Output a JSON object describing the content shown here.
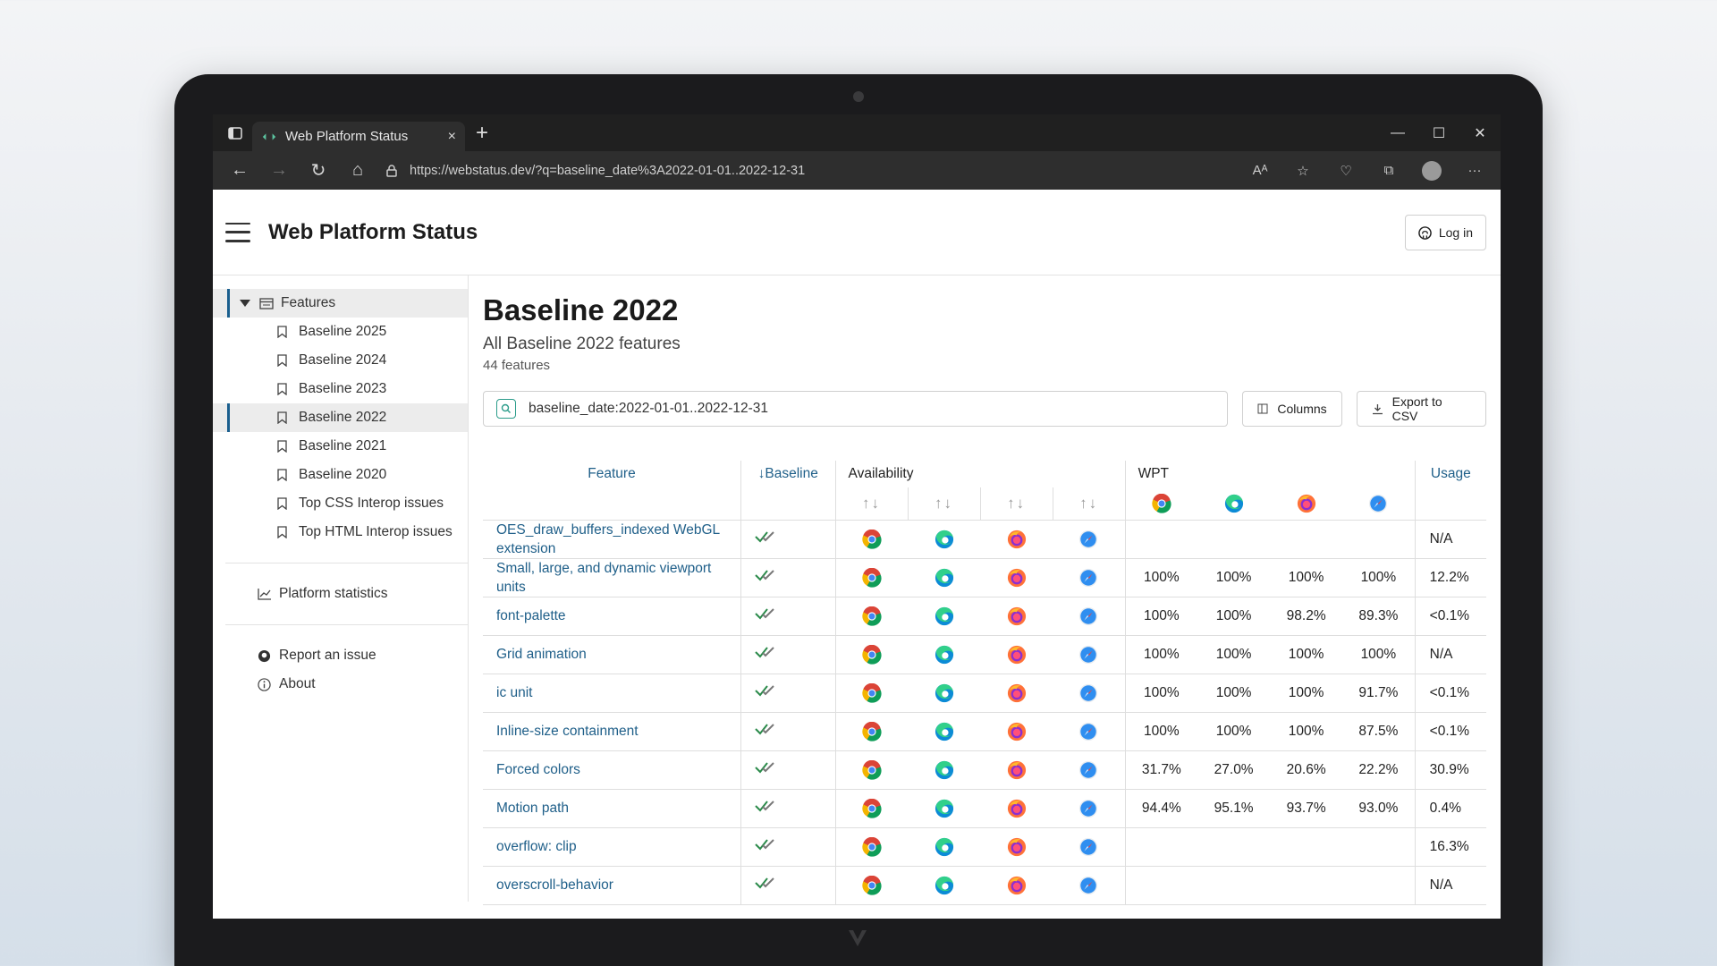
{
  "browser": {
    "tab_title": "Web Platform Status",
    "url": "https://webstatus.dev/?q=baseline_date%3A2022-01-01..2022-12-31",
    "new_tab": "+",
    "close_tab": "×",
    "minimize": "—",
    "maximize": "☐",
    "close_window": "✕",
    "back": "←",
    "forward": "→",
    "reload": "↻",
    "home": "⌂",
    "more": "···",
    "read_aloud": "Aᴬ"
  },
  "app": {
    "title": "Web Platform Status",
    "login_label": "Log in"
  },
  "sidebar": {
    "root_label": "Features",
    "items": [
      {
        "label": "Baseline 2025"
      },
      {
        "label": "Baseline 2024"
      },
      {
        "label": "Baseline 2023"
      },
      {
        "label": "Baseline 2022"
      },
      {
        "label": "Baseline 2021"
      },
      {
        "label": "Baseline 2020"
      },
      {
        "label": "Top CSS Interop issues"
      },
      {
        "label": "Top HTML Interop issues"
      }
    ],
    "stats_label": "Platform statistics",
    "report_label": "Report an issue",
    "about_label": "About"
  },
  "page": {
    "title": "Baseline 2022",
    "subtitle": "All Baseline 2022 features",
    "count": "44 features",
    "search_value": "baseline_date:2022-01-01..2022-12-31",
    "columns_label": "Columns",
    "export_label": "Export to CSV"
  },
  "table": {
    "headers": {
      "feature": "Feature",
      "baseline": "↓Baseline",
      "availability": "Availability",
      "wpt": "WPT",
      "usage": "Usage",
      "sort": "↑↓"
    },
    "rows": [
      {
        "feature": "OES_draw_buffers_indexed WebGL extension",
        "wpt": [
          "",
          "",
          "",
          ""
        ],
        "usage": "N/A"
      },
      {
        "feature": "Small, large, and dynamic viewport units",
        "wpt": [
          "100%",
          "100%",
          "100%",
          "100%"
        ],
        "usage": "12.2%"
      },
      {
        "feature": "font-palette",
        "wpt": [
          "100%",
          "100%",
          "98.2%",
          "89.3%"
        ],
        "usage": "<0.1%"
      },
      {
        "feature": "Grid animation",
        "wpt": [
          "100%",
          "100%",
          "100%",
          "100%"
        ],
        "usage": "N/A"
      },
      {
        "feature": "ic unit",
        "wpt": [
          "100%",
          "100%",
          "100%",
          "91.7%"
        ],
        "usage": "<0.1%"
      },
      {
        "feature": "Inline-size containment",
        "wpt": [
          "100%",
          "100%",
          "100%",
          "87.5%"
        ],
        "usage": "<0.1%"
      },
      {
        "feature": "Forced colors",
        "wpt": [
          "31.7%",
          "27.0%",
          "20.6%",
          "22.2%"
        ],
        "usage": "30.9%"
      },
      {
        "feature": "Motion path",
        "wpt": [
          "94.4%",
          "95.1%",
          "93.7%",
          "93.0%"
        ],
        "usage": "0.4%"
      },
      {
        "feature": "overflow: clip",
        "wpt": [
          "",
          "",
          "",
          ""
        ],
        "usage": "16.3%"
      },
      {
        "feature": "overscroll-behavior",
        "wpt": [
          "",
          "",
          "",
          ""
        ],
        "usage": "N/A"
      }
    ]
  },
  "colors": {
    "link": "#1f5f89",
    "accent": "#1a5f8e",
    "baseline_check": "#2a8a4a",
    "chrome_dark": "#202020"
  },
  "icons": [
    "chrome-icon",
    "edge-icon",
    "firefox-icon",
    "safari-icon",
    "baseline-check-icon",
    "github-icon",
    "bookmark-icon",
    "search-icon"
  ]
}
